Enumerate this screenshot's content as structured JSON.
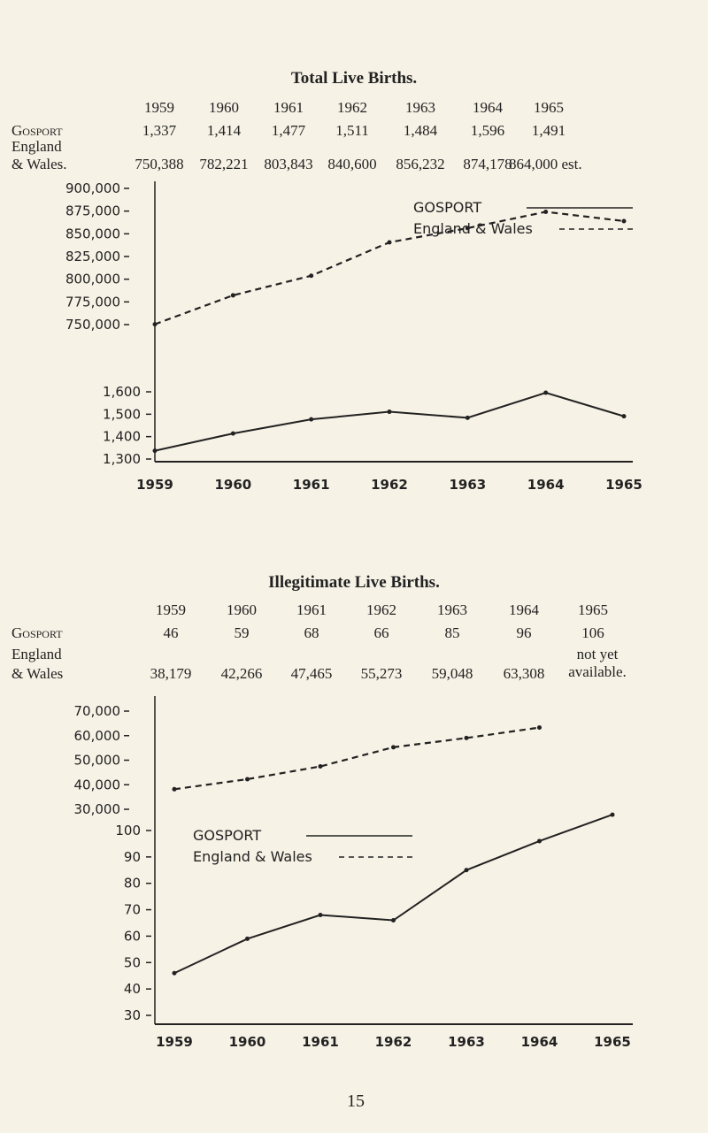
{
  "tables": [
    {
      "title": "Total Live Births.",
      "years": [
        "1959",
        "1960",
        "1961",
        "1962",
        "1963",
        "1964",
        "1965"
      ],
      "rows": [
        {
          "label": "Gosport",
          "values": [
            "1,337",
            "1,414",
            "1,477",
            "1,511",
            "1,484",
            "1,596",
            "1,491"
          ]
        },
        {
          "label_line1": "England",
          "label_line2": "& Wales.",
          "values": [
            "750,388",
            "782,221",
            "803,843",
            "840,600",
            "856,232",
            "874,178",
            "864,000 est."
          ]
        }
      ]
    },
    {
      "title": "Illegitimate Live Births.",
      "years": [
        "1959",
        "1960",
        "1961",
        "1962",
        "1963",
        "1964",
        "1965"
      ],
      "rows": [
        {
          "label": "Gosport",
          "values": [
            "46",
            "59",
            "68",
            "66",
            "85",
            "96",
            "106"
          ]
        },
        {
          "label_line1": "England",
          "label_line2": "& Wales",
          "values": [
            "38,179",
            "42,266",
            "47,465",
            "55,273",
            "59,048",
            "63,308",
            "not yet available."
          ]
        }
      ]
    }
  ],
  "page_number": "15",
  "chart_data": [
    {
      "type": "line",
      "x": [
        1959,
        1960,
        1961,
        1962,
        1963,
        1964,
        1965
      ],
      "xticks": [
        "1959",
        "1960",
        "1961",
        "1962",
        "1963",
        "1964",
        "1965"
      ],
      "upper_axis": {
        "ticks": [
          "900,000",
          "875,000",
          "850,000",
          "825,000",
          "800,000",
          "775,000",
          "750,000"
        ],
        "ylim": [
          750000,
          900000
        ]
      },
      "lower_axis": {
        "ticks": [
          "1,600",
          "1,500",
          "1,400",
          "1,300"
        ],
        "ylim": [
          1300,
          1600
        ]
      },
      "series": [
        {
          "name": "GOSPORT",
          "style": "solid",
          "axis": "lower",
          "values": [
            1337,
            1414,
            1477,
            1511,
            1484,
            1596,
            1491
          ]
        },
        {
          "name": "England & Wales",
          "style": "dashed",
          "axis": "upper",
          "values": [
            750388,
            782221,
            803843,
            840600,
            856232,
            874178,
            864000
          ]
        }
      ],
      "legend": "top-right"
    },
    {
      "type": "line",
      "x": [
        1959,
        1960,
        1961,
        1962,
        1963,
        1964,
        1965
      ],
      "xticks": [
        "1959",
        "1960",
        "1961",
        "1962",
        "1963",
        "1964",
        "1965"
      ],
      "upper_axis": {
        "ticks": [
          "70,000",
          "60,000",
          "50,000",
          "40,000",
          "30,000"
        ],
        "ylim": [
          30000,
          70000
        ]
      },
      "lower_axis": {
        "ticks": [
          "100",
          "90",
          "80",
          "70",
          "60",
          "50",
          "40",
          "30"
        ],
        "ylim": [
          30,
          100
        ]
      },
      "series": [
        {
          "name": "GOSPORT",
          "style": "solid",
          "axis": "lower",
          "values": [
            46,
            59,
            68,
            66,
            85,
            96,
            106
          ]
        },
        {
          "name": "England & Wales",
          "style": "dashed",
          "axis": "upper",
          "values": [
            38179,
            42266,
            47465,
            55273,
            59048,
            63308,
            null
          ]
        }
      ],
      "legend": "middle-left"
    }
  ]
}
